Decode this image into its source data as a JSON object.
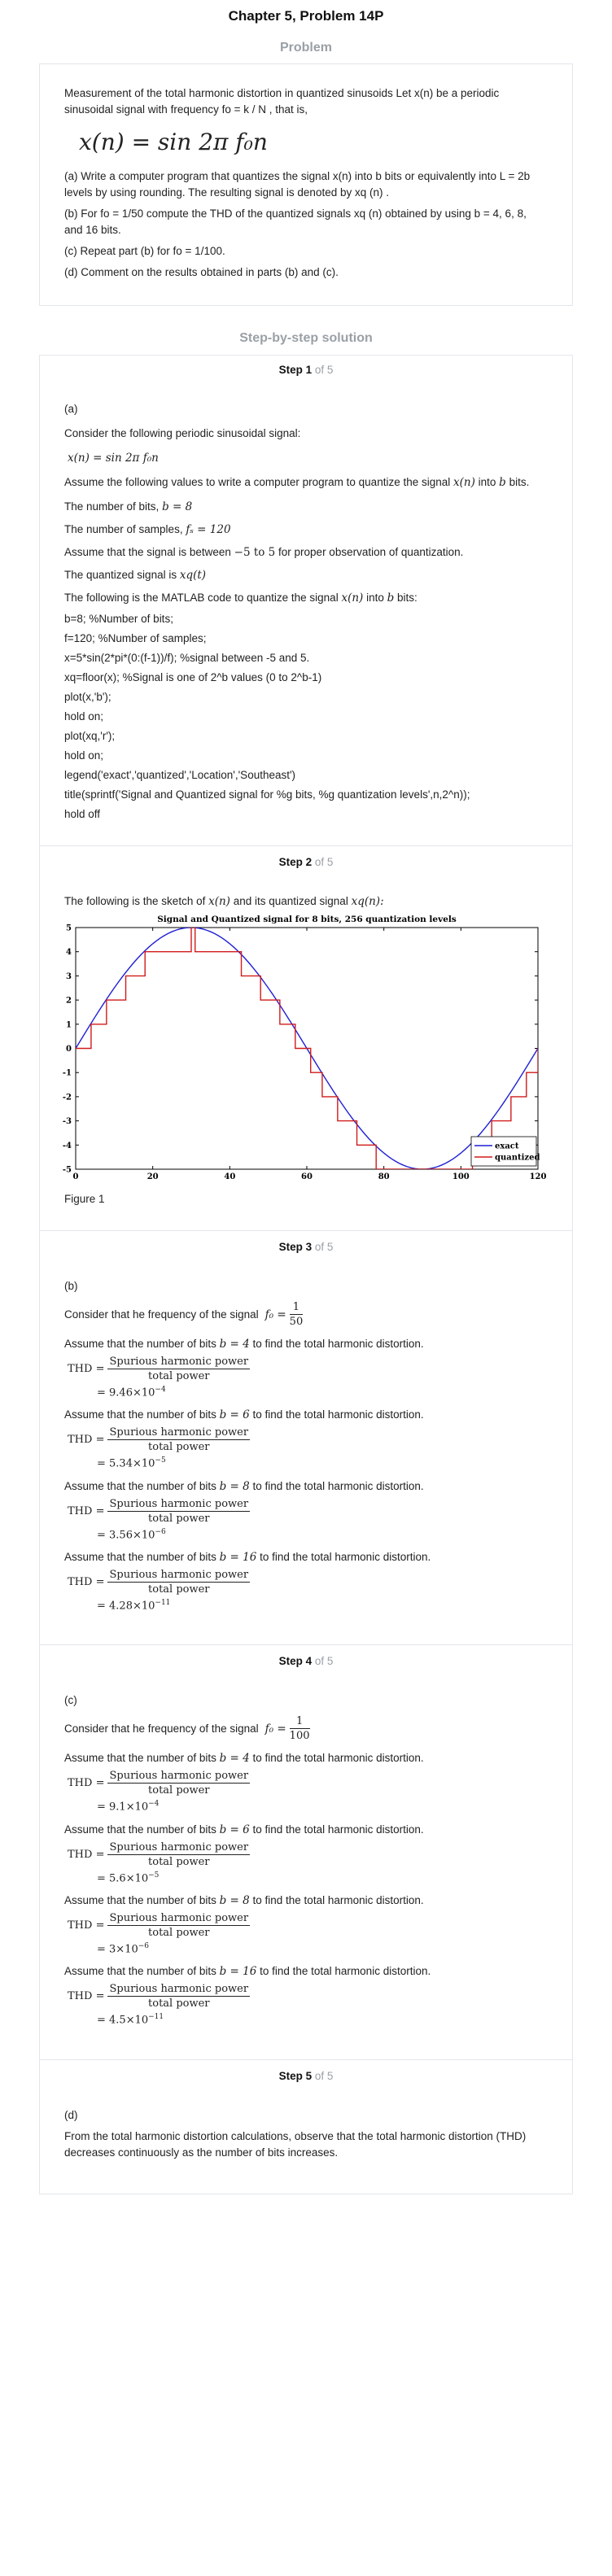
{
  "header": {
    "title": "Chapter 5, Problem 14P"
  },
  "problem": {
    "heading": "Problem",
    "intro": "Measurement of the total harmonic distortion in quantized sinusoids Let x(n) be a periodic sinusoidal signal with frequency fo = k / N , that is,",
    "formula": "x(n) = sin 2π f₀n",
    "part_a": "(a) Write a computer program that quantizes the signal x(n) into b bits or equivalently into L = 2b levels by using rounding. The resulting signal is denoted by xq (n) .",
    "part_b": "(b) For fo = 1/50 compute the THD of the quantized signals xq (n) obtained by using b = 4, 6, 8, and 16 bits.",
    "part_c": "(c) Repeat part (b) for fo = 1/100.",
    "part_d": "(d) Comment on the results obtained in parts (b) and (c)."
  },
  "solution": {
    "heading": "Step-by-step solution",
    "of_label": "of 5",
    "step_label": "Step"
  },
  "step1": {
    "number": "1",
    "part": "(a)",
    "l1": "Consider the following periodic sinusoidal signal:",
    "eq1": "x(n) = sin 2π f₀n",
    "l2a": "Assume the following values to write a computer program to quantize the signal",
    "l2sym": "x(n)",
    "l2b": "into",
    "l2sym2": "b",
    "l2c": "bits.",
    "l3a": "The number of bits,",
    "l3eq": "b = 8",
    "l4a": "The number of samples,",
    "l4eq": "fₛ = 120",
    "l5a": "Assume that the signal is between",
    "l5eq": "−5 to 5",
    "l5b": "for proper observation of quantization.",
    "l6a": "The quantized signal is",
    "l6eq": "xq(t)",
    "l7a": "The following is the MATLAB code to quantize the signal",
    "l7sym": "x(n)",
    "l7b": "into",
    "l7sym2": "b",
    "l7c": "bits:",
    "code": [
      "b=8; %Number of bits;",
      "f=120; %Number of samples;",
      "x=5*sin(2*pi*(0:(f-1))/f); %signal between -5 and 5.",
      "xq=floor(x); %Signal is one of 2^b values (0 to 2^b-1)",
      "plot(x,'b');",
      "hold on;",
      "plot(xq,'r');",
      "hold on;",
      "legend('exact','quantized','Location','Southeast')",
      "title(sprintf('Signal and Quantized signal for %g bits, %g quantization levels',n,2^n));",
      "hold off"
    ]
  },
  "step2": {
    "number": "2",
    "l1a": "The following is the sketch of",
    "l1sym": "x(n)",
    "l1b": "and its quantized signal",
    "l1sym2": "xq(n):",
    "caption": "Figure 1"
  },
  "chart_data": {
    "type": "line",
    "title": "Signal and Quantized signal for 8 bits, 256 quantization levels",
    "xlabel": "",
    "ylabel": "",
    "xlim": [
      0,
      120
    ],
    "ylim": [
      -5,
      5
    ],
    "xticks": [
      "0",
      "20",
      "40",
      "60",
      "80",
      "100",
      "120"
    ],
    "yticks": [
      "5",
      "4",
      "3",
      "2",
      "1",
      "0",
      "-1",
      "-2",
      "-3",
      "-4",
      "-5"
    ],
    "series": [
      {
        "name": "exact",
        "color": "#1f1fd6",
        "formula": "5*sin(2*pi*n/120)",
        "n_points": 120
      },
      {
        "name": "quantized",
        "color": "#d11a1a",
        "formula": "floor(5*sin(2*pi*n/120))",
        "n_points": 120
      }
    ],
    "legend_position": "bottom-right"
  },
  "step3": {
    "number": "3",
    "part": "(b)",
    "freq_a": "Consider that he frequency of the signal",
    "freq_sym": "f₀ =",
    "freq_num": "1",
    "freq_den": "50",
    "thd_label": "THD =",
    "thd_num": "Spurious harmonic power",
    "thd_den": "total power",
    "items": [
      {
        "lead": "Assume that the number of bits",
        "b": "b = 4",
        "tail": "to find the total harmonic distortion.",
        "value": "= 9.46×10",
        "exp": "−4"
      },
      {
        "lead": "Assume that the number of bits",
        "b": "b = 6",
        "tail": "to find the total harmonic distortion.",
        "value": "= 5.34×10",
        "exp": "−5"
      },
      {
        "lead": "Assume that the number of bits",
        "b": "b = 8",
        "tail": "to find the total harmonic distortion.",
        "value": "= 3.56×10",
        "exp": "−6"
      },
      {
        "lead": "Assume that the number of bits",
        "b": "b = 16",
        "tail": "to find the total harmonic distortion.",
        "value": "= 4.28×10",
        "exp": "−11"
      }
    ]
  },
  "step4": {
    "number": "4",
    "part": "(c)",
    "freq_a": "Consider that he frequency of the signal",
    "freq_sym": "f₀ =",
    "freq_num": "1",
    "freq_den": "100",
    "thd_label": "THD =",
    "thd_num": "Spurious harmonic power",
    "thd_den": "total power",
    "items": [
      {
        "lead": "Assume that the number of bits",
        "b": "b = 4",
        "tail": "to find the total harmonic distortion.",
        "value": "= 9.1×10",
        "exp": "−4"
      },
      {
        "lead": "Assume that the number of bits",
        "b": "b = 6",
        "tail": "to find the total harmonic distortion.",
        "value": "= 5.6×10",
        "exp": "−5"
      },
      {
        "lead": "Assume that the number of bits",
        "b": "b = 8",
        "tail": "to find the total harmonic distortion.",
        "value": "= 3×10",
        "exp": "−6"
      },
      {
        "lead": "Assume that the number of bits",
        "b": "b = 16",
        "tail": "to find the total harmonic distortion.",
        "value": "= 4.5×10",
        "exp": "−11"
      }
    ]
  },
  "step5": {
    "number": "5",
    "part": "(d)",
    "text": "From the total harmonic distortion calculations, observe that the total harmonic distortion (THD) decreases continuously as the number of bits increases."
  }
}
